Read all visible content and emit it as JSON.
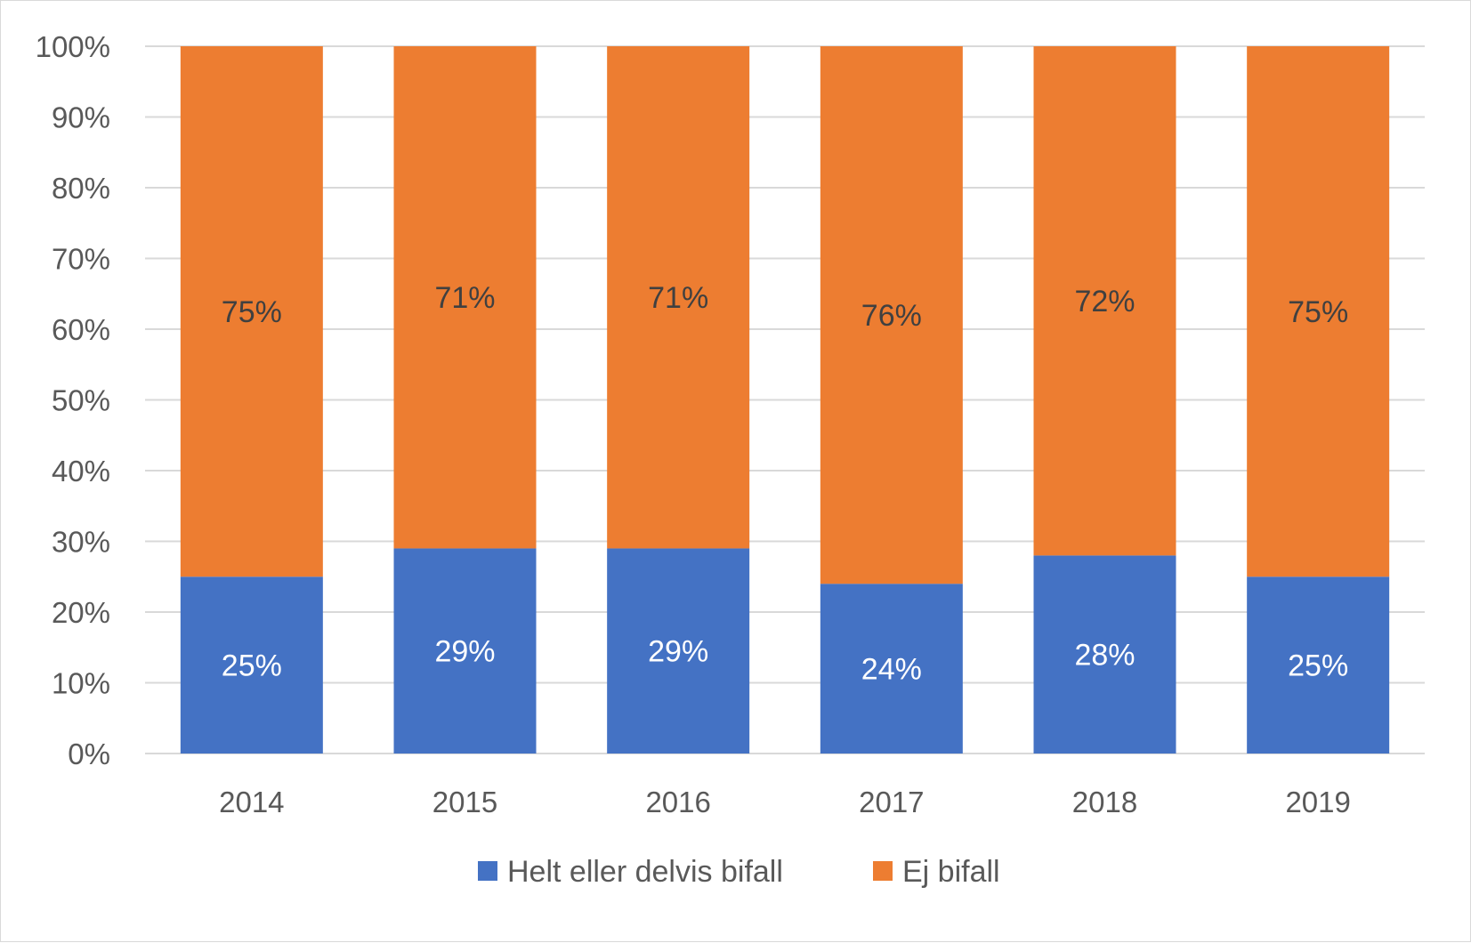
{
  "chart_data": {
    "type": "bar",
    "stacked": true,
    "categories": [
      "2014",
      "2015",
      "2016",
      "2017",
      "2018",
      "2019"
    ],
    "series": [
      {
        "name": "Helt eller delvis bifall",
        "color": "#4472C4",
        "label_color": "#ffffff",
        "values": [
          25,
          29,
          29,
          24,
          28,
          25
        ],
        "labels": [
          "25%",
          "29%",
          "29%",
          "24%",
          "28%",
          "25%"
        ]
      },
      {
        "name": "Ej bifall",
        "color": "#ED7D31",
        "label_color": "#404040",
        "values": [
          75,
          71,
          71,
          76,
          72,
          75
        ],
        "labels": [
          "75%",
          "71%",
          "71%",
          "76%",
          "72%",
          "75%"
        ]
      }
    ],
    "ylim": [
      0,
      100
    ],
    "yticks": [
      "0%",
      "10%",
      "20%",
      "30%",
      "40%",
      "50%",
      "60%",
      "70%",
      "80%",
      "90%",
      "100%"
    ],
    "grid": true,
    "legend_position": "bottom",
    "gridline_color": "#d9d9d9"
  }
}
